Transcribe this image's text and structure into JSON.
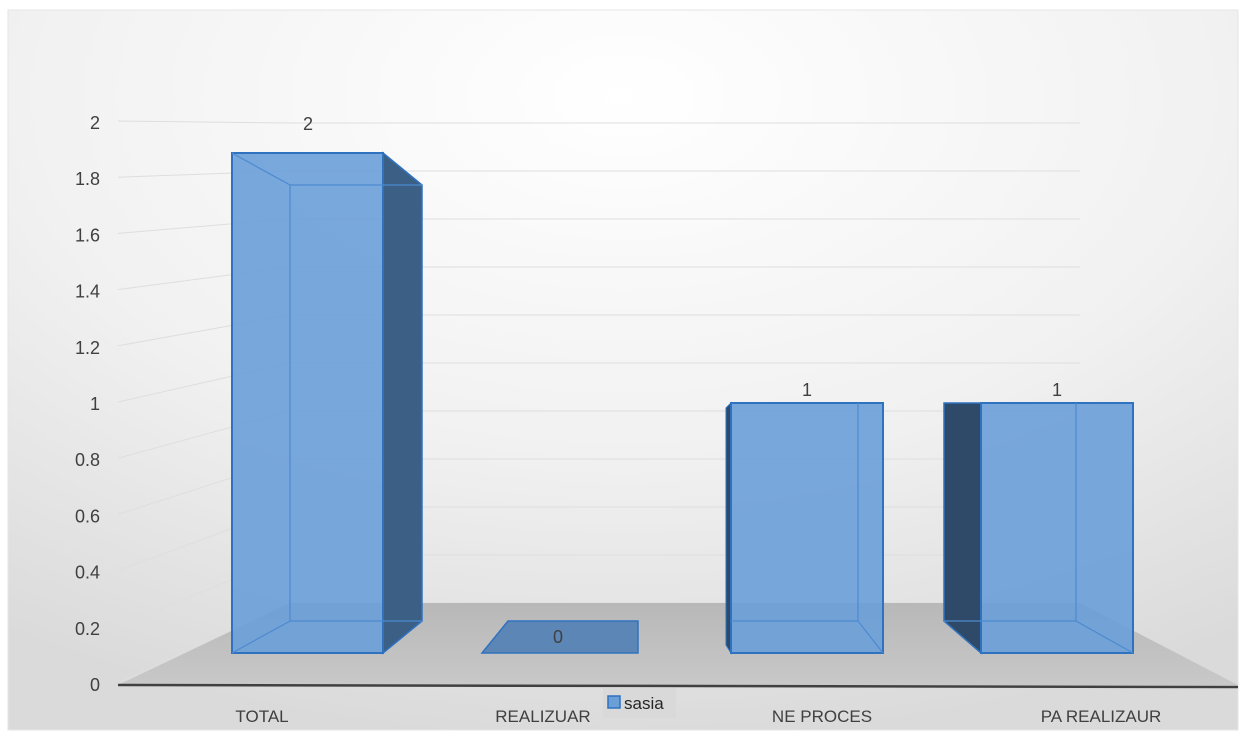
{
  "chart_data": {
    "type": "bar",
    "categories": [
      "TOTAL",
      "REALIZUAR",
      "NE PROCES",
      "PA REALIZAUR"
    ],
    "series": [
      {
        "name": "sasia",
        "values": [
          2,
          0,
          1,
          1
        ]
      }
    ],
    "data_labels": [
      "2",
      "0",
      "1",
      "1"
    ],
    "y_ticks": [
      "0",
      "0.2",
      "0.4",
      "0.6",
      "0.8",
      "1",
      "1.2",
      "1.4",
      "1.6",
      "1.8",
      "2"
    ],
    "ylim": [
      0,
      2
    ],
    "grid": true,
    "legend_position": "bottom",
    "style": "3d-column",
    "colors": {
      "bar_face": "#6a9fd8",
      "bar_side": "#3c5f86",
      "bar_edge": "#2f72c0",
      "floor": "#bdbdbd",
      "axis": "#404040"
    }
  }
}
